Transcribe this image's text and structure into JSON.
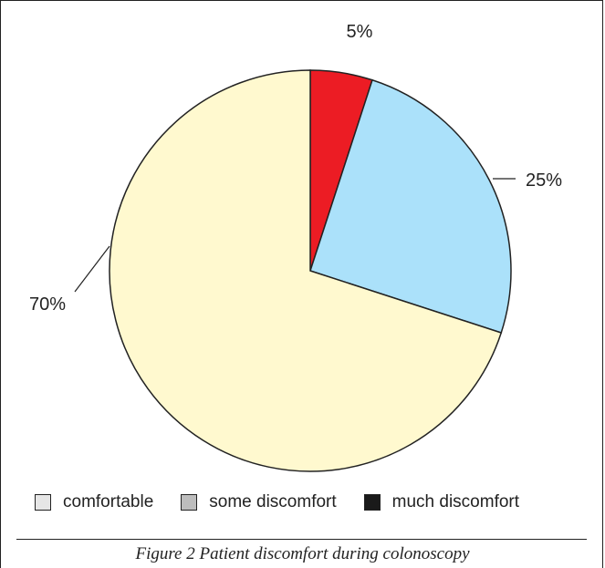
{
  "chart_data": {
    "type": "pie",
    "slices": [
      {
        "label": "5%",
        "value": 5,
        "color": "#ec1c24"
      },
      {
        "label": "25%",
        "value": 25,
        "color": "#abe1fa"
      },
      {
        "label": "70%",
        "value": 70,
        "color": "#fff9cf"
      }
    ],
    "legend": [
      {
        "label": "comfortable",
        "color": "#e6e6e6"
      },
      {
        "label": "some discomfort",
        "color": "#bdbdbd"
      },
      {
        "label": "much discomfort",
        "color": "#1a1a1a"
      }
    ],
    "legend_position": "bottom",
    "caption": "Figure 2 Patient discomfort during colonoscopy"
  }
}
